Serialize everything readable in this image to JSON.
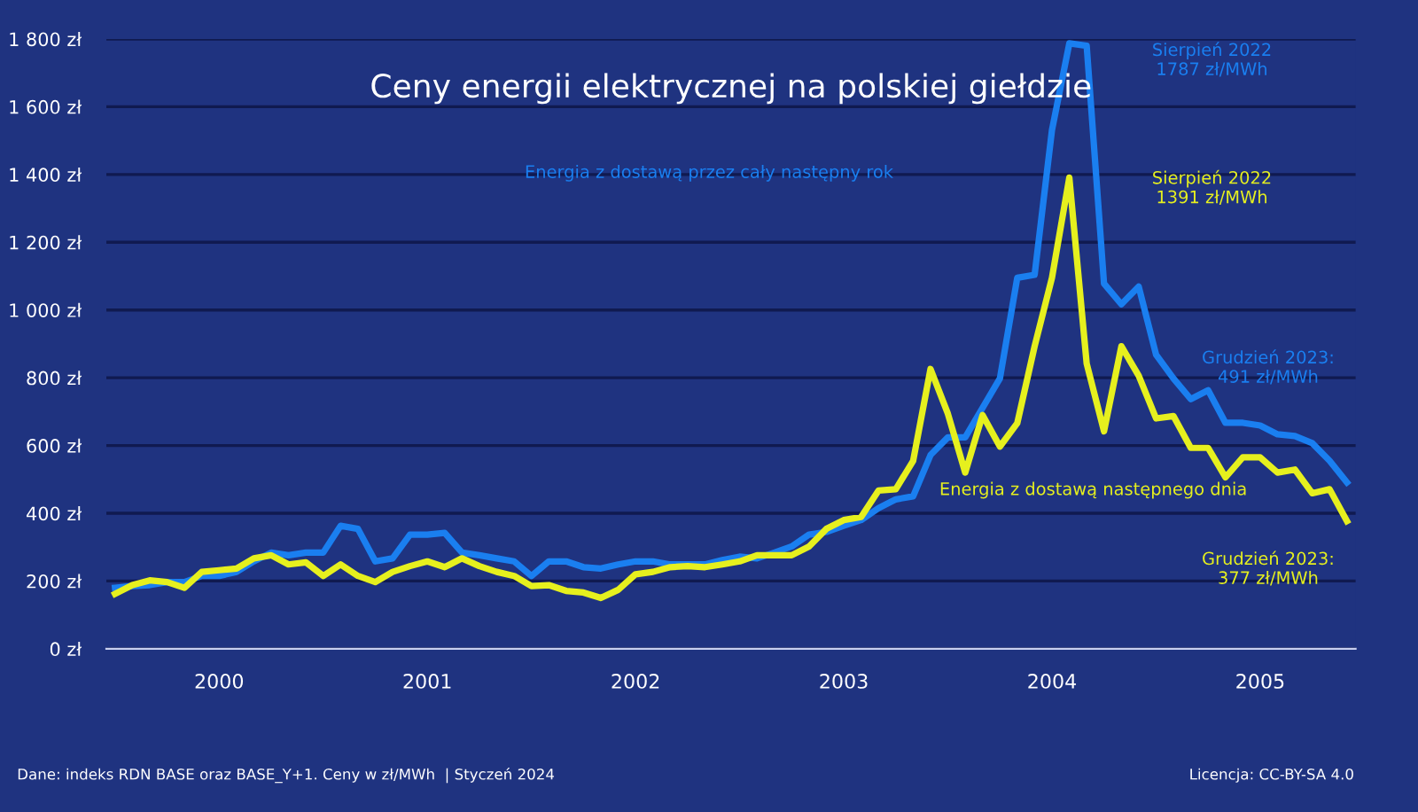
{
  "chart_data": {
    "type": "line",
    "title": "Ceny energii elektrycznej na polskiej giełdzie",
    "categories": [
      null,
      null,
      null,
      null,
      null,
      null,
      "2000",
      null,
      null,
      null,
      null,
      null,
      null,
      null,
      null,
      null,
      null,
      null,
      "2001",
      null,
      null,
      null,
      null,
      null,
      null,
      null,
      null,
      null,
      null,
      null,
      "2002",
      null,
      null,
      null,
      null,
      null,
      null,
      null,
      null,
      null,
      null,
      null,
      "2003",
      null,
      null,
      null,
      null,
      null,
      null,
      null,
      null,
      null,
      null,
      null,
      "2004",
      null,
      null,
      null,
      null,
      null,
      null,
      null,
      null,
      null,
      null,
      null,
      "2005",
      null,
      null,
      null,
      null,
      null
    ],
    "series": [
      {
        "name": "Energia z dostawą przez cały następny rok",
        "color": "#1a7ff0",
        "values": [
          180,
          185,
          188,
          197,
          197,
          215,
          215,
          227,
          258,
          284,
          276,
          284,
          284,
          363,
          354,
          258,
          267,
          337,
          337,
          342,
          284,
          276,
          267,
          258,
          215,
          258,
          258,
          241,
          237,
          249,
          258,
          258,
          249,
          249,
          249,
          262,
          272,
          267,
          284,
          302,
          337,
          345,
          363,
          380,
          415,
          441,
          450,
          572,
          624,
          624,
          711,
          798,
          1095,
          1104,
          1531,
          1787,
          1780,
          1078,
          1017,
          1069,
          868,
          798,
          737,
          763,
          667,
          667,
          659,
          633,
          628,
          607,
          555,
          491
        ]
      },
      {
        "name": "Energia z dostawą następnego dnia",
        "color": "#e6f01e",
        "values": [
          162,
          188,
          202,
          197,
          180,
          227,
          232,
          237,
          267,
          276,
          249,
          255,
          215,
          249,
          215,
          197,
          227,
          244,
          258,
          241,
          267,
          244,
          227,
          215,
          185,
          188,
          171,
          166,
          150,
          174,
          220,
          227,
          241,
          244,
          241,
          249,
          258,
          276,
          276,
          276,
          302,
          354,
          380,
          389,
          467,
          471,
          555,
          826,
          694,
          520,
          690,
          597,
          666,
          893,
          1095,
          1391,
          842,
          642,
          893,
          806,
          680,
          687,
          593,
          593,
          506,
          565,
          565,
          520,
          529,
          459,
          471,
          377
        ]
      }
    ],
    "annotations": [
      "Sierpień 2022\n1787 zł/MWh",
      "Sierpień 2022\n1391 zł/MWh",
      "Grudzień 2023:\n491 zł/MWh",
      "Grudzień 2023:\n377 zł/MWh",
      "Dane: indeks RDN BASE oraz BASE_Y+1. Ceny w zł/MWh  | Styczeń 2024",
      "Licencja: CC-BY-SA 4.0"
    ],
    "ylim": [
      0,
      1800
    ],
    "yticks": [
      {
        "value": 0,
        "label": "0 zł"
      },
      {
        "value": 200,
        "label": "200 zł"
      },
      {
        "value": 400,
        "label": "400 zł"
      },
      {
        "value": 600,
        "label": "600 zł"
      },
      {
        "value": 800,
        "label": "800 zł"
      },
      {
        "value": 1000,
        "label": "1 000 zł"
      },
      {
        "value": 1200,
        "label": "1 200 zł"
      },
      {
        "value": 1400,
        "label": "1 400 zł"
      },
      {
        "value": 1600,
        "label": "1 600 zł"
      },
      {
        "value": 1800,
        "label": "1 800 zł"
      }
    ],
    "grid": "y",
    "marker": "none",
    "line_style": "solid"
  }
}
